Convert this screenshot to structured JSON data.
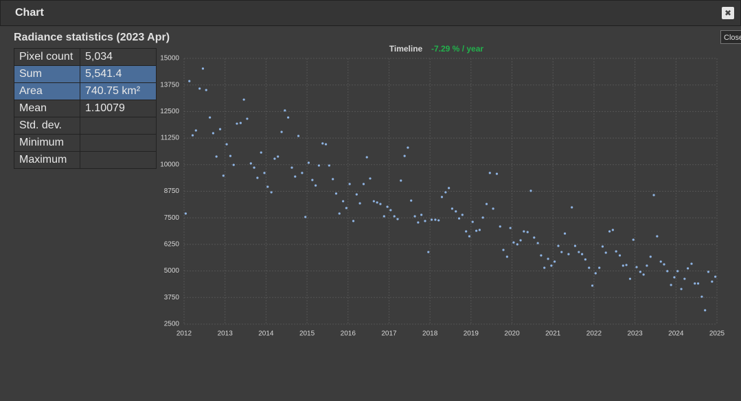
{
  "window": {
    "title": "Chart",
    "close_icon": "✖",
    "side_button": "Close"
  },
  "stats": {
    "title": "Radiance statistics (2023 Apr)",
    "rows": [
      {
        "label": "Pixel count",
        "value": "5,034"
      },
      {
        "label": "Sum",
        "value": "5,541.4",
        "highlight": true
      },
      {
        "label": "Area",
        "value": "740.75 km²",
        "highlight": true
      },
      {
        "label": "Mean",
        "value": "1.10079"
      },
      {
        "label": "Std. dev."
      },
      {
        "label": "Minimum"
      },
      {
        "label": "Maximum"
      }
    ]
  },
  "chart_data": {
    "type": "scatter",
    "title": "Timeline",
    "subtitle": "-7.29 % / year",
    "subtitle_color": "#22b14c",
    "color": "#8fb4e3",
    "grid": true,
    "xlim": [
      2012,
      2025
    ],
    "xticks": [
      2012,
      2013,
      2014,
      2015,
      2016,
      2017,
      2018,
      2019,
      2020,
      2021,
      2022,
      2023,
      2024,
      2025
    ],
    "ylim": [
      2500,
      15000
    ],
    "yticks": [
      2500,
      3750,
      5000,
      6250,
      7500,
      8750,
      10000,
      11250,
      12500,
      13750,
      15000
    ],
    "x": [
      2012.04,
      2012.13,
      2012.21,
      2012.29,
      2012.38,
      2012.46,
      2012.54,
      2012.63,
      2012.71,
      2012.79,
      2012.88,
      2012.96,
      2013.04,
      2013.13,
      2013.21,
      2013.29,
      2013.38,
      2013.46,
      2013.54,
      2013.63,
      2013.71,
      2013.79,
      2013.88,
      2013.96,
      2014.04,
      2014.13,
      2014.21,
      2014.29,
      2014.38,
      2014.46,
      2014.54,
      2014.63,
      2014.71,
      2014.79,
      2014.88,
      2014.96,
      2015.04,
      2015.13,
      2015.21,
      2015.29,
      2015.38,
      2015.46,
      2015.54,
      2015.63,
      2015.71,
      2015.79,
      2015.88,
      2015.96,
      2016.04,
      2016.13,
      2016.21,
      2016.29,
      2016.38,
      2016.46,
      2016.54,
      2016.63,
      2016.71,
      2016.79,
      2016.88,
      2016.96,
      2017.04,
      2017.13,
      2017.21,
      2017.29,
      2017.38,
      2017.46,
      2017.54,
      2017.63,
      2017.71,
      2017.79,
      2017.88,
      2017.96,
      2018.04,
      2018.13,
      2018.21,
      2018.29,
      2018.38,
      2018.46,
      2018.54,
      2018.63,
      2018.71,
      2018.79,
      2018.88,
      2018.96,
      2019.04,
      2019.13,
      2019.21,
      2019.29,
      2019.38,
      2019.46,
      2019.54,
      2019.63,
      2019.71,
      2019.79,
      2019.88,
      2019.96,
      2020.04,
      2020.13,
      2020.21,
      2020.29,
      2020.38,
      2020.46,
      2020.54,
      2020.63,
      2020.71,
      2020.79,
      2020.88,
      2020.96,
      2021.04,
      2021.13,
      2021.21,
      2021.29,
      2021.38,
      2021.46,
      2021.54,
      2021.63,
      2021.71,
      2021.79,
      2021.88,
      2021.96,
      2022.04,
      2022.13,
      2022.21,
      2022.29,
      2022.38,
      2022.46,
      2022.54,
      2022.63,
      2022.71,
      2022.79,
      2022.88,
      2022.96,
      2023.04,
      2023.13,
      2023.21,
      2023.29,
      2023.38,
      2023.46,
      2023.54,
      2023.63,
      2023.71,
      2023.79,
      2023.88,
      2023.96,
      2024.04,
      2024.13,
      2024.21,
      2024.29,
      2024.38,
      2024.46,
      2024.54,
      2024.63,
      2024.71,
      2024.79,
      2024.88,
      2024.96
    ],
    "values": [
      7700,
      13930,
      11380,
      11610,
      13580,
      14520,
      13510,
      12220,
      11480,
      10380,
      11670,
      9480,
      10960,
      10410,
      9990,
      11930,
      11960,
      13060,
      12160,
      10060,
      9860,
      9380,
      10570,
      9610,
      8960,
      8700,
      10280,
      10380,
      11540,
      12550,
      12220,
      9860,
      9440,
      11350,
      9610,
      7540,
      10090,
      9280,
      9020,
      9960,
      11000,
      10960,
      9960,
      9320,
      8640,
      7700,
      8280,
      7960,
      9090,
      7350,
      8600,
      8180,
      9090,
      10350,
      9350,
      8280,
      8220,
      8150,
      7570,
      8020,
      7860,
      7570,
      7440,
      9250,
      10410,
      10800,
      8310,
      7570,
      7280,
      7640,
      7350,
      5890,
      7410,
      7410,
      7380,
      8480,
      8700,
      8900,
      7930,
      7800,
      7470,
      7640,
      6860,
      6630,
      7310,
      6890,
      6930,
      7510,
      8150,
      9610,
      7930,
      9570,
      7090,
      5990,
      5670,
      7020,
      6340,
      6250,
      6440,
      6860,
      6830,
      8770,
      6570,
      6310,
      5730,
      5150,
      5570,
      5250,
      5440,
      6180,
      5890,
      6760,
      5790,
      7990,
      6180,
      5890,
      5790,
      5540,
      5150,
      4310,
      4890,
      5150,
      6150,
      5860,
      6860,
      6930,
      5920,
      5730,
      5250,
      5280,
      4630,
      6470,
      5180,
      4960,
      4830,
      5250,
      5670,
      8570,
      6630,
      5440,
      5310,
      4990,
      4340,
      4700,
      4990,
      4150,
      4630,
      5120,
      5340,
      4410,
      4410,
      3790,
      3150,
      4960,
      4500,
      4730
    ]
  }
}
